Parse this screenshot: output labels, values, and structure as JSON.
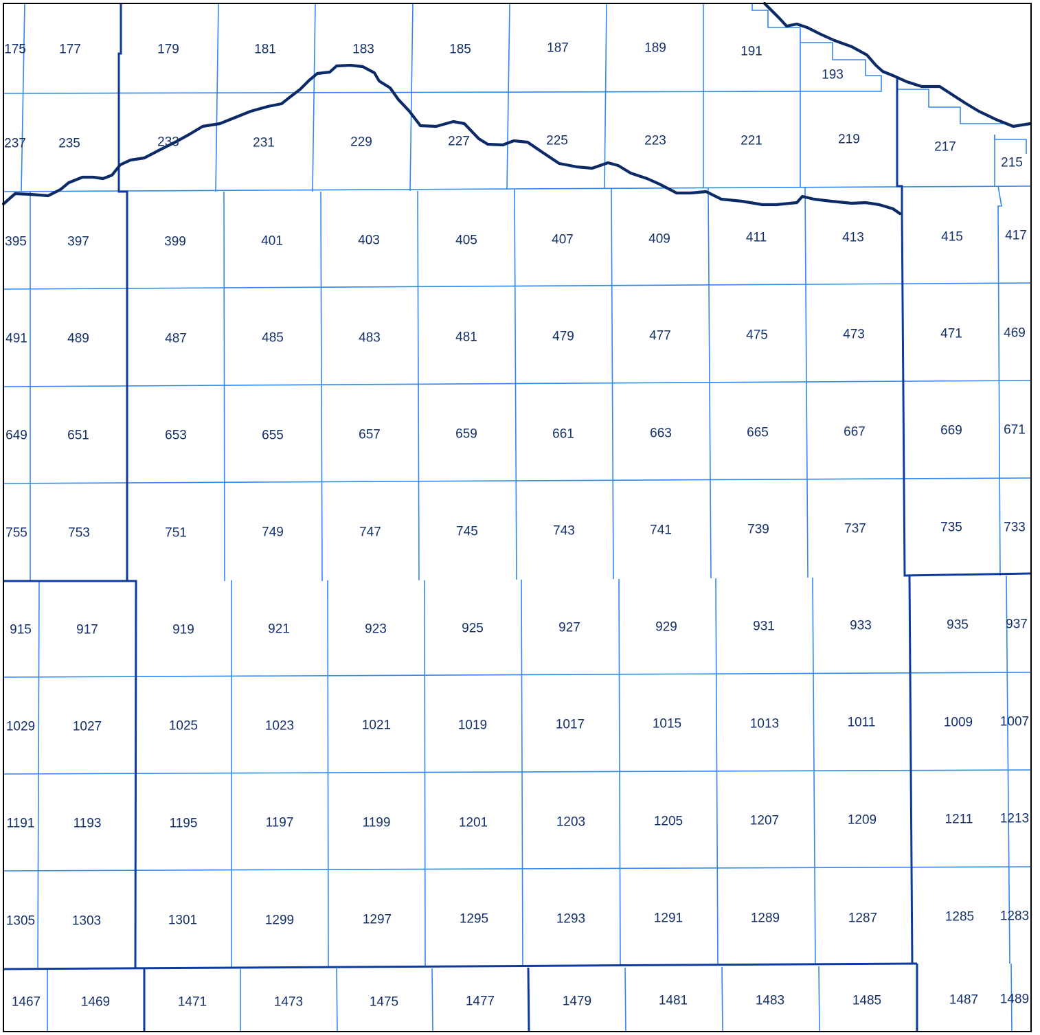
{
  "map": {
    "colors": {
      "grid": "#2f86f5",
      "section_boundary": "#0c3a9e",
      "river": "#0b2a66",
      "label": "#14306a",
      "frame": "#000000"
    },
    "rows": [
      [
        "175",
        "177",
        "179",
        "181",
        "183",
        "185",
        "187",
        "189",
        "191",
        "193"
      ],
      [
        "237",
        "235",
        "233",
        "231",
        "229",
        "227",
        "225",
        "223",
        "221",
        "219",
        "217",
        "215"
      ],
      [
        "395",
        "397",
        "399",
        "401",
        "403",
        "405",
        "407",
        "409",
        "411",
        "413",
        "415",
        "417"
      ],
      [
        "491",
        "489",
        "487",
        "485",
        "483",
        "481",
        "479",
        "477",
        "475",
        "473",
        "471",
        "469"
      ],
      [
        "649",
        "651",
        "653",
        "655",
        "657",
        "659",
        "661",
        "663",
        "665",
        "667",
        "669",
        "671"
      ],
      [
        "755",
        "753",
        "751",
        "749",
        "747",
        "745",
        "743",
        "741",
        "739",
        "737",
        "735",
        "733"
      ],
      [
        "915",
        "917",
        "919",
        "921",
        "923",
        "925",
        "927",
        "929",
        "931",
        "933",
        "935",
        "937"
      ],
      [
        "1029",
        "1027",
        "1025",
        "1023",
        "1021",
        "1019",
        "1017",
        "1015",
        "1013",
        "1011",
        "1009",
        "1007"
      ],
      [
        "1191",
        "1193",
        "1195",
        "1197",
        "1199",
        "1201",
        "1203",
        "1205",
        "1207",
        "1209",
        "1211",
        "1213"
      ],
      [
        "1305",
        "1303",
        "1301",
        "1299",
        "1297",
        "1295",
        "1293",
        "1291",
        "1289",
        "1287",
        "1285",
        "1283"
      ],
      [
        "1467",
        "1469",
        "1471",
        "1473",
        "1475",
        "1477",
        "1479",
        "1481",
        "1483",
        "1485",
        "1487",
        "1489"
      ]
    ]
  }
}
